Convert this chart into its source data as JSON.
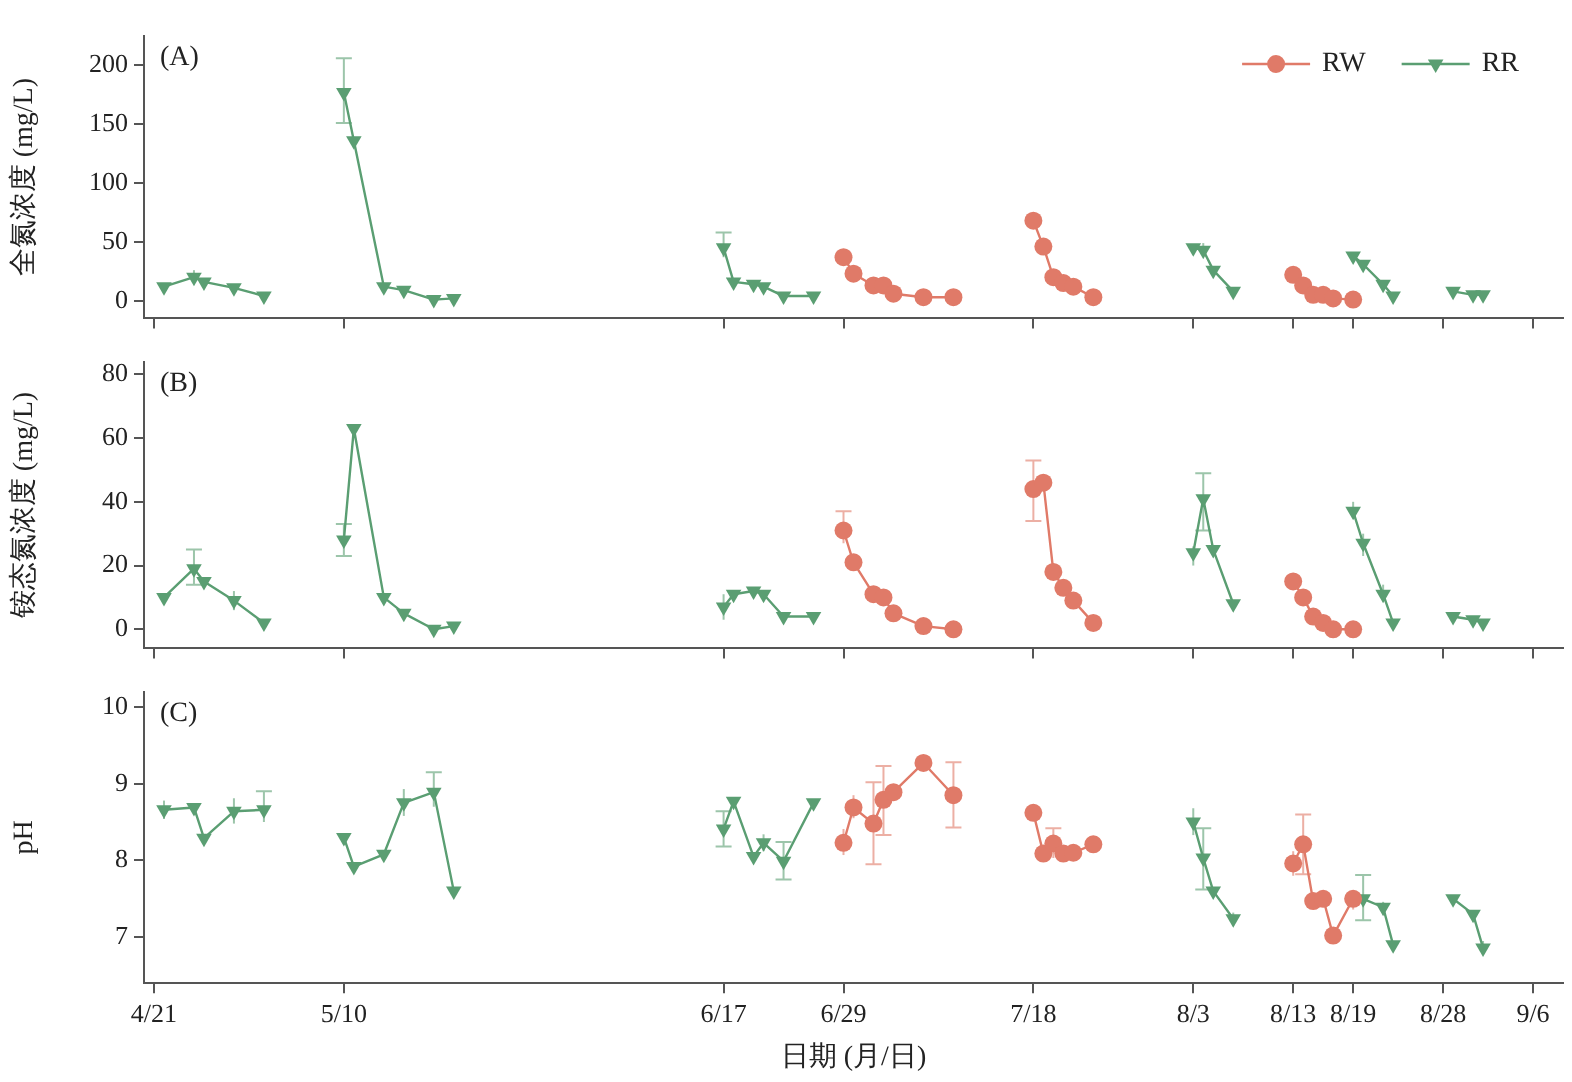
{
  "chart_data": [
    {
      "type": "line",
      "title": "(A)",
      "ylabel": "全氮浓度 (mg/L)",
      "xlim": [
        "--04-20",
        "--09-09"
      ],
      "ylim": [
        -15,
        225
      ],
      "yticks": [
        0,
        50,
        100,
        150,
        200
      ],
      "xticks": [
        {
          "value": "--04-21",
          "label": null
        },
        {
          "value": "--05-10",
          "label": null
        },
        {
          "value": "--06-17",
          "label": null
        },
        {
          "value": "--06-29",
          "label": null
        },
        {
          "value": "--07-18",
          "label": null
        },
        {
          "value": "--08-03",
          "label": null
        },
        {
          "value": "--08-13",
          "label": null
        },
        {
          "value": "--08-19",
          "label": null
        },
        {
          "value": "--08-28",
          "label": null
        },
        {
          "value": "--09-06",
          "label": null
        }
      ],
      "tick_labels": "y",
      "legend": "top right",
      "grid": false,
      "series": [
        {
          "name": "RW",
          "color": "#e07a68",
          "marker": "circle",
          "x": [
            "--06-29",
            "--06-30",
            "--07-02",
            "--07-03",
            "--07-04",
            "--07-07",
            "--07-10",
            "--07-14",
            "--07-18",
            "--07-19",
            "--07-20",
            "--07-21",
            "--07-22",
            "--07-24",
            "--08-01",
            "--08-13",
            "--08-14",
            "--08-15",
            "--08-16",
            "--08-17",
            "--08-19"
          ],
          "values": [
            37,
            23,
            13,
            13,
            6,
            3,
            3,
            null,
            68,
            46,
            20,
            15,
            12,
            3,
            null,
            22,
            13,
            5,
            5,
            2,
            1
          ],
          "errors": [
            [
              32,
              42
            ],
            null,
            null,
            null,
            null,
            null,
            null,
            null,
            null,
            null,
            null,
            null,
            null,
            null,
            null,
            null,
            null,
            null,
            null,
            null,
            null
          ]
        },
        {
          "name": "RR",
          "color": "#5a9e72",
          "marker": "triangle",
          "x": [
            "--04-22",
            "--04-25",
            "--04-26",
            "--04-29",
            "--05-02",
            "--05-05",
            "--05-10",
            "--05-11",
            "--05-14",
            "--05-16",
            "--05-19",
            "--05-21",
            "--05-25",
            "--06-17",
            "--06-18",
            "--06-20",
            "--06-21",
            "--06-23",
            "--06-26",
            "--07-30",
            "--08-03",
            "--08-04",
            "--08-05",
            "--08-07",
            "--08-12",
            "--08-19",
            "--08-20",
            "--08-22",
            "--08-23",
            "--08-26",
            "--08-29",
            "--08-31",
            "--09-01"
          ],
          "values": [
            12,
            20,
            16,
            11,
            4,
            null,
            177,
            136,
            12,
            9,
            1,
            2,
            null,
            45,
            16,
            14,
            12,
            4,
            4,
            null,
            45,
            43,
            26,
            8,
            null,
            38,
            31,
            14,
            4,
            null,
            8,
            5,
            5
          ],
          "errors": [
            null,
            [
              15,
              26
            ],
            null,
            null,
            null,
            null,
            [
              151,
              206
            ],
            null,
            null,
            null,
            null,
            null,
            null,
            [
              37,
              58
            ],
            null,
            null,
            null,
            null,
            null,
            null,
            null,
            [
              40,
              49
            ],
            null,
            null,
            null,
            null,
            null,
            null,
            null,
            null,
            null,
            null,
            null
          ]
        }
      ]
    },
    {
      "type": "line",
      "title": "(B)",
      "ylabel": "铵态氮浓度 (mg/L)",
      "xlim": [
        "--04-20",
        "--09-09"
      ],
      "ylim": [
        -6,
        84
      ],
      "yticks": [
        0,
        20,
        40,
        60,
        80
      ],
      "xticks": [
        {
          "value": "--04-21",
          "label": null
        },
        {
          "value": "--05-10",
          "label": null
        },
        {
          "value": "--06-17",
          "label": null
        },
        {
          "value": "--06-29",
          "label": null
        },
        {
          "value": "--07-18",
          "label": null
        },
        {
          "value": "--08-03",
          "label": null
        },
        {
          "value": "--08-13",
          "label": null
        },
        {
          "value": "--08-19",
          "label": null
        },
        {
          "value": "--08-28",
          "label": null
        },
        {
          "value": "--09-06",
          "label": null
        }
      ],
      "tick_labels": "y",
      "grid": false,
      "series": [
        {
          "color": "#e07a68",
          "marker": "circle",
          "x": [
            "--06-29",
            "--06-30",
            "--07-02",
            "--07-03",
            "--07-04",
            "--07-07",
            "--07-10",
            "--07-14",
            "--07-18",
            "--07-19",
            "--07-20",
            "--07-21",
            "--07-22",
            "--07-24",
            "--08-01",
            "--08-13",
            "--08-14",
            "--08-15",
            "--08-16",
            "--08-17",
            "--08-19"
          ],
          "values": [
            31,
            21,
            11,
            10,
            5,
            1,
            0,
            null,
            44,
            46,
            18,
            13,
            9,
            2,
            null,
            15,
            10,
            4,
            2,
            0,
            0
          ],
          "errors": [
            [
              27,
              37
            ],
            null,
            null,
            null,
            null,
            null,
            null,
            null,
            [
              34,
              53
            ],
            null,
            null,
            null,
            null,
            null,
            null,
            null,
            null,
            null,
            null,
            null,
            null
          ]
        },
        {
          "color": "#5a9e72",
          "marker": "triangle",
          "x": [
            "--04-22",
            "--04-25",
            "--04-26",
            "--04-29",
            "--05-02",
            "--05-05",
            "--05-10",
            "--05-11",
            "--05-14",
            "--05-16",
            "--05-19",
            "--05-21",
            "--05-25",
            "--06-17",
            "--06-18",
            "--06-20",
            "--06-21",
            "--06-23",
            "--06-26",
            "--07-30",
            "--08-03",
            "--08-04",
            "--08-05",
            "--08-07",
            "--08-12",
            "--08-19",
            "--08-20",
            "--08-22",
            "--08-23",
            "--08-26",
            "--08-29",
            "--08-31",
            "--09-01"
          ],
          "values": [
            10,
            19,
            15,
            9,
            2,
            null,
            28,
            63,
            10,
            5,
            0,
            1,
            null,
            7,
            11,
            12,
            11,
            4,
            4,
            null,
            24,
            41,
            25,
            8,
            null,
            37,
            27,
            11,
            2,
            null,
            4,
            3,
            2
          ],
          "errors": [
            null,
            [
              14,
              25
            ],
            null,
            [
              6,
              12
            ],
            null,
            null,
            [
              23,
              33
            ],
            null,
            null,
            null,
            null,
            null,
            null,
            [
              3,
              11
            ],
            null,
            null,
            null,
            null,
            null,
            null,
            [
              20,
              26
            ],
            [
              31,
              49
            ],
            null,
            null,
            null,
            [
              35,
              40
            ],
            [
              23,
              30
            ],
            [
              9,
              14
            ],
            null,
            null,
            null,
            null,
            null
          ]
        }
      ]
    },
    {
      "type": "line",
      "title": "(C)",
      "xlabel": "日期 (月/日)",
      "ylabel": "pH",
      "xlim": [
        "--04-20",
        "--09-09"
      ],
      "ylim": [
        6.4,
        10.2
      ],
      "yticks": [
        7,
        8,
        9,
        10
      ],
      "xticks": [
        {
          "value": "--04-21",
          "label": "4/21"
        },
        {
          "value": "--05-10",
          "label": "5/10"
        },
        {
          "value": "--06-17",
          "label": "6/17"
        },
        {
          "value": "--06-29",
          "label": "6/29"
        },
        {
          "value": "--07-18",
          "label": "7/18"
        },
        {
          "value": "--08-03",
          "label": "8/3"
        },
        {
          "value": "--08-13",
          "label": "8/13"
        },
        {
          "value": "--08-19",
          "label": "8/19"
        },
        {
          "value": "--08-28",
          "label": "8/28"
        },
        {
          "value": "--09-06",
          "label": "9/6"
        }
      ],
      "grid": false,
      "series": [
        {
          "color": "#e07a68",
          "marker": "circle",
          "x": [
            "--06-29",
            "--06-30",
            "--07-02",
            "--07-03",
            "--07-04",
            "--07-07",
            "--07-10",
            "--07-14",
            "--07-18",
            "--07-19",
            "--07-20",
            "--07-21",
            "--07-22",
            "--07-24",
            "--08-01",
            "--08-13",
            "--08-14",
            "--08-15",
            "--08-16",
            "--08-17",
            "--08-19"
          ],
          "values": [
            8.23,
            8.69,
            8.48,
            8.79,
            8.89,
            9.27,
            8.85,
            null,
            8.62,
            8.09,
            8.22,
            8.09,
            8.1,
            8.21,
            null,
            7.96,
            8.21,
            7.47,
            7.5,
            7.02,
            7.5
          ],
          "errors": [
            [
              8.07,
              8.41
            ],
            [
              8.55,
              8.85
            ],
            [
              7.95,
              9.02
            ],
            [
              8.33,
              9.23
            ],
            null,
            null,
            [
              8.43,
              9.28
            ],
            null,
            [
              8.57,
              8.67
            ],
            null,
            [
              8.03,
              8.42
            ],
            [
              7.98,
              8.18
            ],
            [
              8.03,
              8.18
            ],
            null,
            null,
            [
              7.8,
              8.12
            ],
            [
              7.82,
              8.6
            ],
            null,
            [
              7.46,
              7.54
            ],
            null,
            [
              7.36,
              7.6
            ]
          ]
        },
        {
          "color": "#5a9e72",
          "marker": "triangle",
          "x": [
            "--04-22",
            "--04-25",
            "--04-26",
            "--04-29",
            "--05-02",
            "--05-05",
            "--05-10",
            "--05-11",
            "--05-14",
            "--05-16",
            "--05-19",
            "--05-21",
            "--05-25",
            "--06-17",
            "--06-18",
            "--06-20",
            "--06-21",
            "--06-23",
            "--06-26",
            "--07-30",
            "--08-03",
            "--08-04",
            "--08-05",
            "--08-07",
            "--08-12",
            "--08-19",
            "--08-20",
            "--08-22",
            "--08-23",
            "--08-26",
            "--08-29",
            "--08-31",
            "--09-01"
          ],
          "values": [
            8.66,
            8.69,
            8.29,
            8.64,
            8.66,
            null,
            8.3,
            7.92,
            8.08,
            8.75,
            8.89,
            7.6,
            null,
            8.41,
            8.77,
            8.05,
            8.23,
            7.99,
            8.75,
            null,
            8.5,
            8.03,
            7.6,
            7.24,
            null,
            null,
            7.5,
            7.39,
            6.9,
            null,
            7.5,
            7.3,
            6.86
          ],
          "errors": [
            [
              8.54,
              8.78
            ],
            null,
            null,
            [
              8.48,
              8.81
            ],
            [
              8.5,
              8.9
            ],
            null,
            null,
            null,
            [
              8.03,
              8.13
            ],
            [
              8.58,
              8.93
            ],
            [
              8.7,
              9.15
            ],
            null,
            null,
            [
              8.18,
              8.64
            ],
            null,
            null,
            [
              8.12,
              8.34
            ],
            [
              7.75,
              8.24
            ],
            null,
            null,
            [
              8.33,
              8.68
            ],
            [
              7.62,
              8.42
            ],
            null,
            [
              7.15,
              7.32
            ],
            null,
            null,
            [
              7.22,
              7.81
            ],
            [
              7.3,
              7.46
            ],
            null,
            null,
            null,
            null,
            [
              6.78,
              6.95
            ]
          ]
        }
      ]
    }
  ]
}
